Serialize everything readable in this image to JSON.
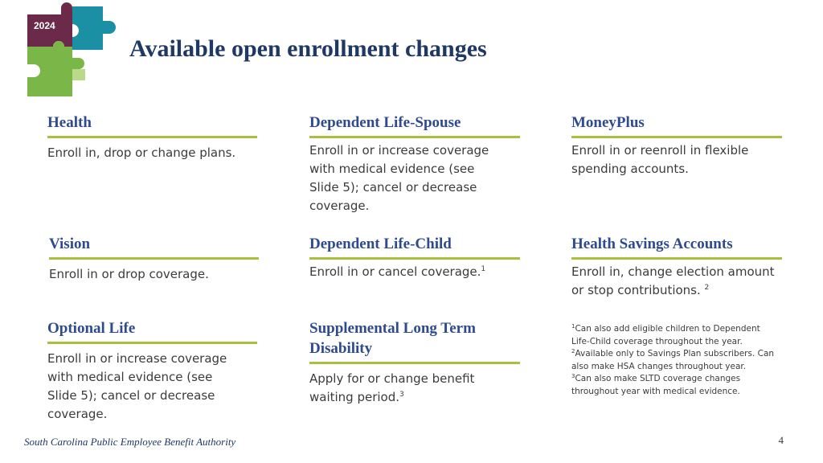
{
  "logo": {
    "year": "2024"
  },
  "title": "Available open enrollment changes",
  "cards": {
    "health": {
      "title": "Health",
      "text": "Enroll in, drop or change plans."
    },
    "dep_life_spouse": {
      "title": "Dependent Life-Spouse",
      "text": "Enroll in or increase coverage with medical evidence (see Slide 5); cancel or decrease coverage."
    },
    "moneyplus": {
      "title": "MoneyPlus",
      "text": "Enroll in or reenroll in flexible spending accounts."
    },
    "vision": {
      "title": "Vision",
      "text": "Enroll in or drop coverage."
    },
    "dep_life_child": {
      "title": "Dependent Life-Child",
      "text": "Enroll in or cancel coverage.",
      "sup": "1"
    },
    "hsa": {
      "title": "Health Savings Accounts",
      "text": "Enroll in, change election amount or stop contributions. ",
      "sup": "2"
    },
    "optional_life": {
      "title": "Optional Life",
      "text": "Enroll in or increase coverage with medical evidence (see Slide 5); cancel or decrease coverage."
    },
    "sltd": {
      "title": "Supplemental Long Term Disability",
      "text": "Apply for or change benefit waiting period.",
      "sup": "3"
    }
  },
  "footnotes": [
    {
      "num": "1",
      "text": "Can also add eligible children to Dependent Life-Child coverage throughout the year."
    },
    {
      "num": "2",
      "text": "Available only to Savings Plan subscribers. Can also make HSA changes throughout year."
    },
    {
      "num": "3",
      "text": "Can also make SLTD coverage changes throughout year with medical evidence."
    }
  ],
  "footer": "South Carolina Public Employee Benefit Authority",
  "page_number": "4",
  "colors": {
    "title": "#1f3864",
    "heading": "#2e4b8f",
    "rule": "#a7c13c"
  }
}
